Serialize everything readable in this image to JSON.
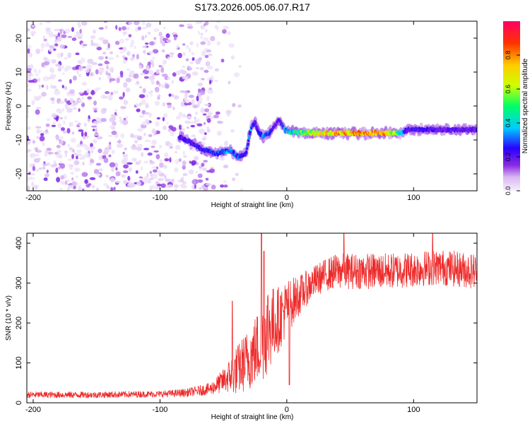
{
  "figure_title": "S173.2026.005.06.07.R17",
  "colors": {
    "snr_line": "#ee2a2a",
    "background": "#ffffff",
    "frame": "#000000"
  },
  "chart_data": [
    {
      "type": "heatmap",
      "xlabel": "Height of straight line (km)",
      "ylabel": "Frequency (Hz)",
      "xlim": [
        -205,
        150
      ],
      "ylim": [
        -25,
        25
      ],
      "x_ticks": [
        -200,
        -100,
        0,
        100
      ],
      "x_tick_labels": [
        "-200",
        "-100",
        "0",
        "100"
      ],
      "y_ticks": [
        20,
        10,
        0,
        -10,
        -20
      ],
      "y_tick_labels": [
        "20",
        "10",
        "0",
        "-10",
        "-20"
      ],
      "colorbar": {
        "label": "Normalized spectral amplitude",
        "range": [
          0,
          1
        ],
        "ticks": [
          0.0,
          0.2,
          0.4,
          0.6,
          0.8
        ],
        "tick_labels": [
          "0.0",
          "0.2",
          "0.4",
          "0.6",
          "0.8"
        ],
        "colormap": [
          "#f4f0fb",
          "#d9b8f2",
          "#8a2be2",
          "#2a00ff",
          "#00ccff",
          "#00ff66",
          "#ccff00",
          "#ffcc00",
          "#ff3300",
          "#ff0066"
        ]
      },
      "signal_track": {
        "description": "dominant frequency ridge",
        "x": [
          -85,
          -75,
          -65,
          -55,
          -45,
          -38,
          -32,
          -28,
          -25,
          -22,
          -18,
          -14,
          -10,
          -6,
          -2,
          0,
          10,
          20,
          40,
          60,
          80,
          90,
          95,
          100,
          120,
          150
        ],
        "freq": [
          -9,
          -11,
          -13,
          -14,
          -13,
          -15,
          -14,
          -6,
          -5,
          -8,
          -9,
          -8,
          -6,
          -4,
          -7,
          -7.5,
          -7.8,
          -8,
          -8,
          -8,
          -8,
          -8,
          -7,
          -7,
          -7,
          -7
        ],
        "amplitude": [
          0.3,
          0.35,
          0.35,
          0.4,
          0.45,
          0.4,
          0.35,
          0.45,
          0.3,
          0.35,
          0.5,
          0.4,
          0.3,
          0.3,
          0.45,
          0.5,
          0.6,
          0.75,
          0.85,
          0.9,
          0.85,
          0.5,
          0.3,
          0.35,
          0.3,
          0.3
        ]
      },
      "noise_region": {
        "x_from": -205,
        "x_to": -60,
        "freq_range": [
          -25,
          25
        ],
        "amplitude_range": [
          0.02,
          0.25
        ]
      }
    },
    {
      "type": "line",
      "xlabel": "Height of straight line (km)",
      "ylabel": "SNR (10 * v/v)",
      "xlim": [
        -205,
        150
      ],
      "ylim": [
        0,
        425
      ],
      "x_ticks": [
        -200,
        -100,
        0,
        100
      ],
      "x_tick_labels": [
        "-200",
        "-100",
        "0",
        "100"
      ],
      "y_ticks": [
        0,
        100,
        200,
        300,
        400
      ],
      "y_tick_labels": [
        "0",
        "100",
        "200",
        "300",
        "400"
      ],
      "series": [
        {
          "name": "SNR",
          "envelope_x": [
            -205,
            -150,
            -100,
            -80,
            -60,
            -50,
            -40,
            -30,
            -20,
            -15,
            -10,
            -5,
            0,
            10,
            20,
            30,
            40,
            60,
            80,
            100,
            120,
            150
          ],
          "envelope_mean": [
            20,
            20,
            22,
            25,
            35,
            55,
            80,
            110,
            150,
            190,
            200,
            215,
            240,
            270,
            300,
            320,
            330,
            330,
            330,
            335,
            340,
            330
          ],
          "envelope_spread": [
            8,
            8,
            8,
            10,
            15,
            30,
            60,
            80,
            100,
            120,
            90,
            80,
            70,
            50,
            40,
            40,
            45,
            45,
            45,
            45,
            45,
            45
          ],
          "spikes": [
            {
              "x": -43,
              "y": 255
            },
            {
              "x": -20,
              "y": 425
            },
            {
              "x": -18,
              "y": 380
            },
            {
              "x": 2,
              "y": 45
            },
            {
              "x": 45,
              "y": 425
            },
            {
              "x": 115,
              "y": 425
            }
          ]
        }
      ]
    }
  ]
}
